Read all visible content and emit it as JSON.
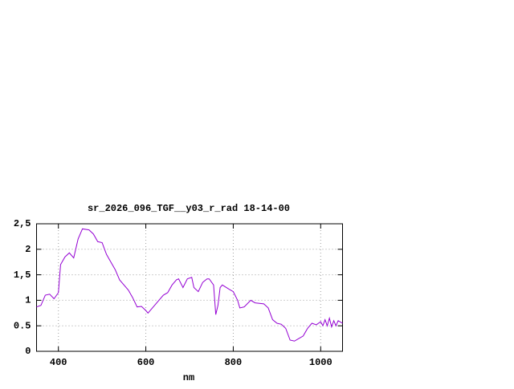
{
  "chart_data": {
    "type": "line",
    "title": "sr_2026_096_TGF__y03_r_rad 18-14-00",
    "x_label": "nm",
    "x": [
      350,
      360,
      370,
      380,
      390,
      400,
      405,
      415,
      425,
      435,
      445,
      455,
      470,
      480,
      490,
      500,
      510,
      520,
      530,
      540,
      560,
      570,
      580,
      590,
      600,
      605,
      615,
      625,
      640,
      650,
      660,
      670,
      675,
      685,
      695,
      705,
      710,
      720,
      730,
      740,
      745,
      755,
      760,
      765,
      770,
      775,
      790,
      800,
      810,
      815,
      825,
      840,
      850,
      870,
      880,
      890,
      900,
      910,
      920,
      930,
      940,
      950,
      960,
      970,
      980,
      990,
      1000,
      1005,
      1010,
      1015,
      1020,
      1025,
      1030,
      1035,
      1040,
      1050
    ],
    "values": [
      0.87,
      0.9,
      1.1,
      1.12,
      1.03,
      1.15,
      1.7,
      1.85,
      1.93,
      1.83,
      2.2,
      2.4,
      2.38,
      2.3,
      2.15,
      2.13,
      1.9,
      1.75,
      1.6,
      1.4,
      1.2,
      1.05,
      0.87,
      0.88,
      0.8,
      0.75,
      0.85,
      0.95,
      1.1,
      1.15,
      1.3,
      1.4,
      1.42,
      1.25,
      1.42,
      1.45,
      1.25,
      1.17,
      1.35,
      1.42,
      1.42,
      1.3,
      0.72,
      0.9,
      1.25,
      1.3,
      1.22,
      1.17,
      1.0,
      0.85,
      0.87,
      1.0,
      0.95,
      0.93,
      0.85,
      0.62,
      0.55,
      0.53,
      0.45,
      0.22,
      0.2,
      0.25,
      0.3,
      0.45,
      0.55,
      0.52,
      0.58,
      0.5,
      0.62,
      0.5,
      0.65,
      0.48,
      0.6,
      0.5,
      0.6,
      0.55
    ],
    "color": "#9400d3",
    "xlim": [
      350,
      1050
    ],
    "xticks": [
      400,
      600,
      800,
      1000
    ],
    "ylim": [
      0,
      2.5
    ],
    "yticks": [
      0,
      {
        "value": 0.5,
        "label": "0.5"
      },
      1,
      {
        "value": 1.5,
        "label": "1,5"
      },
      2,
      {
        "value": 2.5,
        "label": "2,5"
      }
    ],
    "grid": true
  }
}
